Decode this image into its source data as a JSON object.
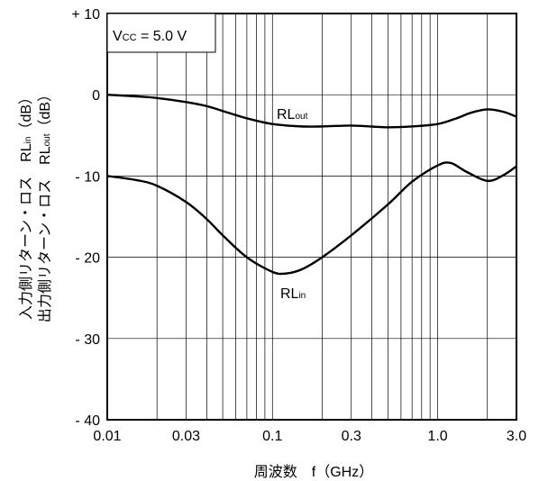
{
  "chart_data": {
    "type": "line",
    "condition_label": {
      "main": "V",
      "sub": "CC",
      "rest": " = 5.0 V"
    },
    "xlabel": "周波数　f（GHz）",
    "ylabel_lines": [
      {
        "text": "入力側リターン・ロス　RL",
        "sub": "in",
        "rest": "（dB）"
      },
      {
        "text": "出力側リターン・ロス　RL",
        "sub": "out",
        "rest": "（dB）"
      }
    ],
    "x_scale": "log",
    "xlim": [
      0.01,
      3.0
    ],
    "ylim": [
      -40,
      10
    ],
    "grid": true,
    "x_ticks": [
      {
        "value": 0.01,
        "label": "0.01"
      },
      {
        "value": 0.03,
        "label": "0.03"
      },
      {
        "value": 0.1,
        "label": "0.1"
      },
      {
        "value": 0.3,
        "label": "0.3"
      },
      {
        "value": 1.0,
        "label": "1.0"
      },
      {
        "value": 3.0,
        "label": "3.0"
      }
    ],
    "y_ticks": [
      {
        "value": 10,
        "label": "+ 10"
      },
      {
        "value": 0,
        "label": "0"
      },
      {
        "value": -10,
        "label": "- 10"
      },
      {
        "value": -20,
        "label": "- 20"
      },
      {
        "value": -30,
        "label": "- 30"
      },
      {
        "value": -40,
        "label": "- 40"
      }
    ],
    "series": [
      {
        "name": "RLout",
        "label_main": "RL",
        "label_sub": "out",
        "x": [
          0.01,
          0.015,
          0.02,
          0.03,
          0.04,
          0.05,
          0.07,
          0.1,
          0.15,
          0.2,
          0.3,
          0.5,
          0.7,
          1.0,
          1.3,
          1.6,
          2.0,
          2.5,
          3.0
        ],
        "y": [
          0.0,
          -0.2,
          -0.4,
          -0.9,
          -1.4,
          -2.0,
          -2.9,
          -3.6,
          -3.9,
          -3.9,
          -3.8,
          -4.0,
          -3.9,
          -3.6,
          -2.9,
          -2.2,
          -1.8,
          -2.1,
          -2.7
        ]
      },
      {
        "name": "RLin",
        "label_main": "RL",
        "label_sub": "in",
        "x": [
          0.01,
          0.015,
          0.02,
          0.03,
          0.04,
          0.05,
          0.07,
          0.1,
          0.12,
          0.15,
          0.2,
          0.3,
          0.5,
          0.7,
          1.0,
          1.2,
          1.5,
          2.0,
          2.5,
          3.0
        ],
        "y": [
          -10.0,
          -10.5,
          -11.2,
          -13.2,
          -15.3,
          -17.3,
          -20.0,
          -21.8,
          -22.0,
          -21.5,
          -20.0,
          -17.3,
          -13.5,
          -10.7,
          -8.7,
          -8.4,
          -9.5,
          -10.6,
          -9.9,
          -8.8
        ]
      }
    ]
  }
}
